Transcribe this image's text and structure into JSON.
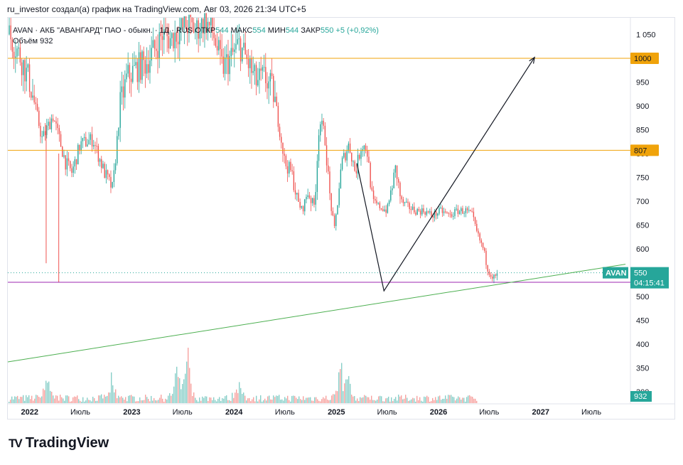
{
  "caption": "ru_investor создал(а) график на TradingView.com, Авг 03, 2026 21:34 UTC+5",
  "legend": {
    "symbol": "AVAN · АКБ \"АВАНГАРД\" ПАО - обыкн. · 1Д · RUS",
    "open_label": "ОТКР",
    "open": "544",
    "high_label": "МАКС",
    "high": "554",
    "low_label": "МИН",
    "low": "544",
    "close_label": "ЗАКР",
    "close": "550",
    "change": "+5 (+0,92%)",
    "volume_label": "Объём",
    "volume": "932"
  },
  "price_badge": {
    "ticker": "AVAN",
    "price": "550",
    "countdown": "04:15:41"
  },
  "brand": {
    "logo": "TV",
    "name": "TradingView"
  },
  "colors": {
    "up": "#26a69a",
    "down": "#ef5350",
    "level": "#f0a30a",
    "support": "#9c27b0",
    "trend": "#4caf50",
    "badge_teal": "#26a69a",
    "axis_text": "#131722"
  },
  "chart_data": {
    "type": "candlestick",
    "symbol": "AVAN",
    "interval": "1D",
    "y_axis": {
      "ticks": [
        1050,
        1000,
        950,
        900,
        850,
        800,
        750,
        700,
        650,
        600,
        550,
        500,
        450,
        400,
        350,
        300
      ],
      "tick_labels": [
        "1 050",
        "1 000",
        "950",
        "900",
        "850",
        "800",
        "750",
        "700",
        "650",
        "600",
        "550",
        "500",
        "450",
        "400",
        "350",
        "300"
      ],
      "range": [
        275,
        1085
      ]
    },
    "x_axis": {
      "labels": [
        "2022",
        "Июль",
        "2023",
        "Июль",
        "2024",
        "Июль",
        "2025",
        "Июль",
        "2026",
        "Июль",
        "2027",
        "Июль"
      ],
      "range": [
        "2021-10-15",
        "2027-11-15"
      ]
    },
    "horizontal_lines": [
      {
        "value": 1000,
        "label": "1000",
        "color": "#f0a30a"
      },
      {
        "value": 807,
        "label": "807",
        "color": "#f0a30a"
      },
      {
        "value": 530,
        "label": "530",
        "color": "#9c27b0"
      }
    ],
    "trendline": {
      "from": [
        "2021-10-15",
        363
      ],
      "to": [
        "2027-10-31",
        568
      ]
    },
    "projection_path": [
      [
        "2025-03-15",
        780
      ],
      [
        "2025-06-20",
        512
      ],
      [
        "2026-12-10",
        1002
      ]
    ],
    "last_price": 550,
    "last_volume": 932,
    "price_anchors": [
      [
        "2021-10-20",
        1050
      ],
      [
        "2021-12-01",
        1000
      ],
      [
        "2022-01-01",
        950
      ],
      [
        "2022-02-15",
        830
      ],
      [
        "2022-03-25",
        880
      ],
      [
        "2022-05-10",
        780
      ],
      [
        "2022-06-01",
        760
      ],
      [
        "2022-07-01",
        820
      ],
      [
        "2022-08-15",
        830
      ],
      [
        "2022-09-25",
        760
      ],
      [
        "2022-10-25",
        725
      ],
      [
        "2022-11-20",
        900
      ],
      [
        "2022-12-15",
        960
      ],
      [
        "2023-01-20",
        980
      ],
      [
        "2023-02-20",
        990
      ],
      [
        "2023-03-25",
        1020
      ],
      [
        "2023-04-20",
        1050
      ],
      [
        "2023-05-20",
        1040
      ],
      [
        "2023-06-20",
        1060
      ],
      [
        "2023-07-20",
        1070
      ],
      [
        "2023-08-20",
        1060
      ],
      [
        "2023-09-20",
        1080
      ],
      [
        "2023-10-20",
        1050
      ],
      [
        "2023-11-20",
        980
      ],
      [
        "2023-12-20",
        1000
      ],
      [
        "2024-01-20",
        1030
      ],
      [
        "2024-02-20",
        990
      ],
      [
        "2024-03-20",
        950
      ],
      [
        "2024-04-20",
        960
      ],
      [
        "2024-05-20",
        930
      ],
      [
        "2024-06-10",
        860
      ],
      [
        "2024-07-01",
        780
      ],
      [
        "2024-07-25",
        760
      ],
      [
        "2024-08-15",
        700
      ],
      [
        "2024-09-01",
        680
      ],
      [
        "2024-09-20",
        720
      ],
      [
        "2024-10-15",
        690
      ],
      [
        "2024-11-01",
        870
      ],
      [
        "2024-11-20",
        840
      ],
      [
        "2024-12-10",
        700
      ],
      [
        "2024-12-25",
        640
      ],
      [
        "2025-01-20",
        780
      ],
      [
        "2025-02-15",
        820
      ],
      [
        "2025-03-10",
        760
      ],
      [
        "2025-04-01",
        820
      ],
      [
        "2025-04-20",
        810
      ],
      [
        "2025-05-10",
        700
      ],
      [
        "2025-06-01",
        690
      ],
      [
        "2025-07-01",
        680
      ],
      [
        "2025-08-01",
        770
      ],
      [
        "2025-08-20",
        700
      ],
      [
        "2025-09-10",
        690
      ],
      [
        "2025-10-10",
        680
      ],
      [
        "2025-11-10",
        680
      ],
      [
        "2025-12-10",
        670
      ],
      [
        "2026-01-10",
        680
      ],
      [
        "2026-02-10",
        670
      ],
      [
        "2026-03-10",
        680
      ],
      [
        "2026-04-10",
        680
      ],
      [
        "2026-05-01",
        670
      ],
      [
        "2026-05-20",
        630
      ],
      [
        "2026-06-10",
        600
      ],
      [
        "2026-06-25",
        560
      ],
      [
        "2026-07-15",
        540
      ],
      [
        "2026-07-25",
        540
      ],
      [
        "2026-08-03",
        550
      ]
    ],
    "volume_spikes": [
      [
        "2022-03-01",
        0.45
      ],
      [
        "2022-10-20",
        0.35
      ],
      [
        "2023-06-10",
        0.5
      ],
      [
        "2023-07-15",
        0.95
      ],
      [
        "2024-01-15",
        0.35
      ],
      [
        "2025-01-15",
        0.55
      ],
      [
        "2025-02-10",
        0.3
      ],
      [
        "2026-06-10",
        0.3
      ]
    ]
  }
}
